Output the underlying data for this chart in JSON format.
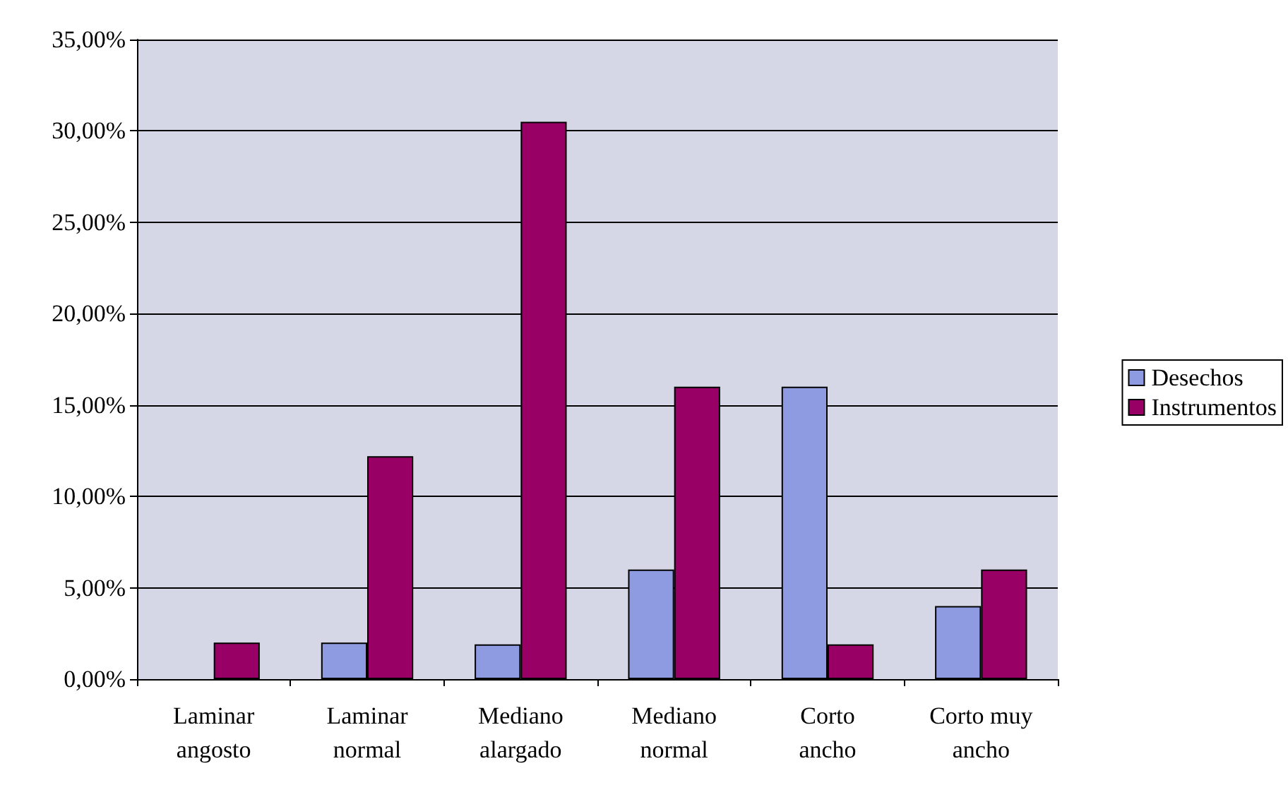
{
  "chart_data": {
    "type": "bar",
    "categories": [
      "Laminar\nangosto",
      "Laminar\nnormal",
      "Mediano\nalargado",
      "Mediano\nnormal",
      "Corto\nancho",
      "Corto muy\nancho"
    ],
    "series": [
      {
        "name": "Desechos",
        "color": "#8f9be0",
        "values": [
          null,
          2.0,
          1.9,
          6.0,
          16.0,
          4.0
        ]
      },
      {
        "name": "Instrumentos",
        "color": "#990066",
        "values": [
          2.0,
          12.2,
          30.5,
          16.0,
          1.9,
          6.0
        ]
      }
    ],
    "ylim": [
      0,
      35
    ],
    "yticks": [
      {
        "value": 0,
        "label": "0,00%"
      },
      {
        "value": 5,
        "label": "5,00%"
      },
      {
        "value": 10,
        "label": "10,00%"
      },
      {
        "value": 15,
        "label": "15,00%"
      },
      {
        "value": 20,
        "label": "20,00%"
      },
      {
        "value": 25,
        "label": "25,00%"
      },
      {
        "value": 30,
        "label": "30,00%"
      },
      {
        "value": 35,
        "label": "35,00%"
      }
    ],
    "grid": "y",
    "legend": "right"
  }
}
